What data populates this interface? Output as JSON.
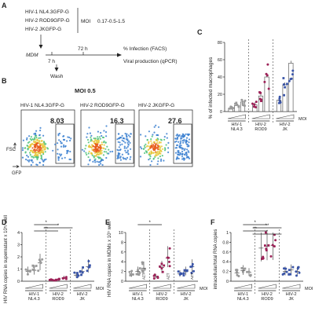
{
  "panel_labels": {
    "A": "A",
    "B": "B",
    "C": "C",
    "D": "D",
    "E": "E",
    "F": "F"
  },
  "schematic": {
    "viruses": [
      "HIV-1 NL4.3GFP-G",
      "HIV-2 ROD9GFP-G",
      "HIV-2 JKGFP-G"
    ],
    "moi_label": "MOI",
    "moi_values": "0.17-0.5-1.5",
    "cells": "MDM",
    "t_7h": "7 h",
    "t_72h": "72 h",
    "wash": "Wash",
    "readout1": "% Infection (FACS)",
    "readout2": "Viral production (qPCR)"
  },
  "flow": {
    "moi_title": "MOI 0.5",
    "plots": [
      {
        "title": "HIV-1 NL4.3GFP-G",
        "value": "8.03"
      },
      {
        "title": "HIV-2 ROD9GFP-G",
        "value": "16.3"
      },
      {
        "title": "HIV-2 JKGFP-G",
        "value": "27.6"
      }
    ],
    "ylabel": "FSC",
    "xlabel": "GFP"
  },
  "colors": {
    "nl43": "#9a9a9a",
    "rod9": "#9c2157",
    "jk": "#3a55a8"
  },
  "chart_data": [
    {
      "panel": "C",
      "type": "bar",
      "ylabel": "% of infected macrophages",
      "ylim": [
        0,
        80
      ],
      "yticks": [
        0,
        20,
        40,
        60,
        80
      ],
      "groups": [
        {
          "name": "HIV-1 NL4.3",
          "label1": "HIV-1",
          "label2": "NL4.3",
          "values": [
            4,
            7,
            11
          ]
        },
        {
          "name": "HIV-2 ROD9",
          "label1": "HIV-2",
          "label2": "ROD9",
          "values": [
            8,
            18,
            40
          ]
        },
        {
          "name": "HIV-2 JK",
          "label1": "HIV-2",
          "label2": "JK",
          "values": [
            13,
            31,
            56
          ]
        }
      ],
      "xlabel": "MOI"
    },
    {
      "panel": "D",
      "type": "scatter",
      "ylabel": "HIV RNA copies in supernatant x 10⁵/ well",
      "ylim": [
        0,
        4
      ],
      "yticks": [
        0,
        1,
        2,
        3,
        4
      ],
      "groups": [
        {
          "name": "HIV-1 NL4.3",
          "label1": "HIV-1",
          "label2": "NL4.3",
          "means": [
            0.8,
            0.9,
            1.5
          ]
        },
        {
          "name": "HIV-2 ROD9",
          "label1": "HIV-2",
          "label2": "ROD9",
          "means": [
            0.1,
            0.15,
            0.3
          ]
        },
        {
          "name": "HIV-2 JK",
          "label1": "HIV-2",
          "label2": "JK",
          "means": [
            0.5,
            0.8,
            1.2
          ]
        }
      ],
      "significance": [
        "*",
        "*",
        "**"
      ],
      "xlabel": "MOI"
    },
    {
      "panel": "E",
      "type": "scatter",
      "ylabel": "HIV RNA copies in MDMs x 10⁵ well",
      "ylim": [
        0,
        10
      ],
      "yticks": [
        0,
        2,
        4,
        6,
        8,
        10
      ],
      "groups": [
        {
          "name": "HIV-1 NL4.3",
          "label1": "HIV-1",
          "label2": "NL4.3",
          "means": [
            1.5,
            2.0,
            2.7
          ]
        },
        {
          "name": "HIV-2 ROD9",
          "label1": "HIV-2",
          "label2": "ROD9",
          "means": [
            1.0,
            2.8,
            4.8
          ]
        },
        {
          "name": "HIV-2 JK",
          "label1": "HIV-2",
          "label2": "JK",
          "means": [
            1.5,
            2.0,
            3.0
          ]
        }
      ],
      "azt_label": "AZT",
      "significance": [
        "*"
      ],
      "xlabel": "MOI"
    },
    {
      "panel": "F",
      "type": "scatter",
      "ylabel": "intracellular/total RNA copies",
      "ylim": [
        0,
        1.0
      ],
      "yticks": [
        0,
        0.2,
        0.4,
        0.6,
        0.8,
        1.0
      ],
      "groups": [
        {
          "name": "HIV-1 NL4.3",
          "label1": "HIV-1",
          "label2": "NL4.3",
          "means": [
            0.17,
            0.22,
            0.18
          ]
        },
        {
          "name": "HIV-2 ROD9",
          "label1": "HIV-2",
          "label2": "ROD9",
          "means": [
            0.68,
            0.72,
            0.73
          ]
        },
        {
          "name": "HIV-2 JK",
          "label1": "HIV-2",
          "label2": "JK",
          "means": [
            0.2,
            0.23,
            0.2
          ]
        }
      ],
      "significance": [
        "*",
        "**",
        "**",
        "*"
      ],
      "xlabel": "MOI"
    }
  ]
}
